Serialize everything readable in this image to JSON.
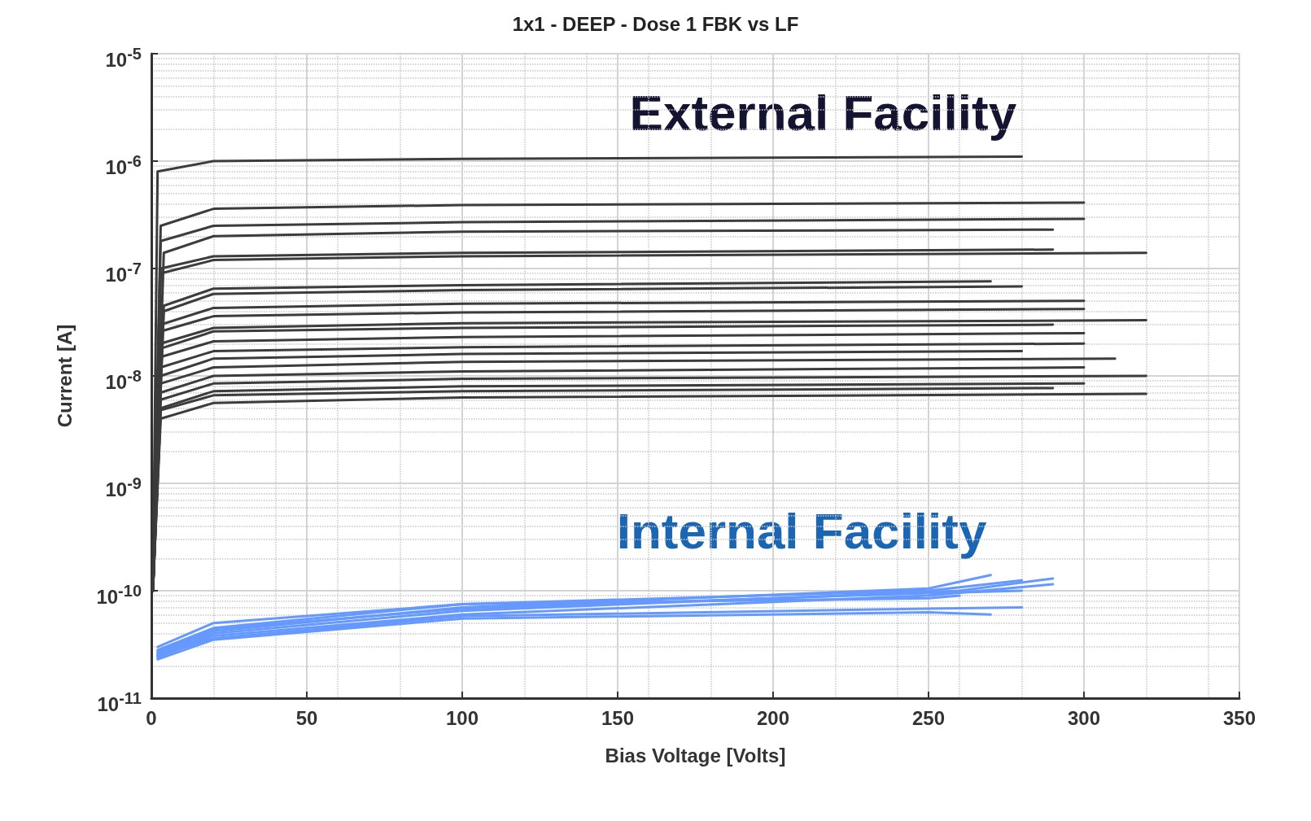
{
  "chart_data": {
    "type": "line",
    "title": "1x1 - DEEP - Dose 1 FBK vs LF",
    "xlabel": "Bias Voltage [Volts]",
    "ylabel": "Current [A]",
    "log": "y",
    "grid": true,
    "marker": "none",
    "xlim": [
      0,
      350
    ],
    "xticks": [
      0,
      50,
      100,
      150,
      200,
      250,
      300,
      350
    ],
    "ylim": [
      1e-11,
      1e-05
    ],
    "yticks": [
      {
        "value": 1e-11,
        "label": "10$^{-11}$"
      },
      {
        "value": 1e-10,
        "label": "10$^{-10}$"
      },
      {
        "value": 1e-09,
        "label": "10$^{-9}$"
      },
      {
        "value": 1e-08,
        "label": "10$^{-8}$"
      },
      {
        "value": 1e-07,
        "label": "10$^{-7}$"
      },
      {
        "value": 1e-06,
        "label": "10$^{-6}$"
      },
      {
        "value": 1e-05,
        "label": "10$^{-5}$"
      }
    ],
    "annotations": [
      "External Facility",
      "Internal Facility"
    ],
    "series": [
      {
        "color": "#3c3c3c",
        "x": [
          0.5,
          2,
          20,
          100,
          280
        ],
        "values": [
          1e-10,
          8e-07,
          1e-06,
          1.05e-06,
          1.1e-06
        ]
      },
      {
        "color": "#3c3c3c",
        "x": [
          0.5,
          3,
          20,
          100,
          300
        ],
        "values": [
          1e-10,
          2.5e-07,
          3.6e-07,
          3.9e-07,
          4.1e-07
        ]
      },
      {
        "color": "#3c3c3c",
        "x": [
          0.5,
          3,
          20,
          100,
          300
        ],
        "values": [
          1e-10,
          1.8e-07,
          2.5e-07,
          2.7e-07,
          2.9e-07
        ]
      },
      {
        "color": "#3c3c3c",
        "x": [
          0.5,
          4,
          20,
          100,
          290
        ],
        "values": [
          1e-10,
          1.4e-07,
          2e-07,
          2.2e-07,
          2.3e-07
        ]
      },
      {
        "color": "#3c3c3c",
        "x": [
          0.5,
          3,
          20,
          100,
          290
        ],
        "values": [
          1e-10,
          1e-07,
          1.3e-07,
          1.4e-07,
          1.5e-07
        ]
      },
      {
        "color": "#3c3c3c",
        "x": [
          0.5,
          3,
          20,
          100,
          320
        ],
        "values": [
          1e-10,
          9e-08,
          1.2e-07,
          1.3e-07,
          1.4e-07
        ]
      },
      {
        "color": "#3c3c3c",
        "x": [
          0.5,
          4,
          20,
          100,
          270
        ],
        "values": [
          1e-10,
          4.5e-08,
          6.5e-08,
          7e-08,
          7.6e-08
        ]
      },
      {
        "color": "#3c3c3c",
        "x": [
          0.5,
          4,
          20,
          100,
          280
        ],
        "values": [
          1e-10,
          4e-08,
          5.8e-08,
          6.3e-08,
          6.8e-08
        ]
      },
      {
        "color": "#3c3c3c",
        "x": [
          0.5,
          3,
          20,
          100,
          300
        ],
        "values": [
          1e-10,
          3e-08,
          4.3e-08,
          4.7e-08,
          5e-08
        ]
      },
      {
        "color": "#3c3c3c",
        "x": [
          0.5,
          3,
          20,
          100,
          300
        ],
        "values": [
          1e-10,
          2.6e-08,
          3.6e-08,
          3.9e-08,
          4.2e-08
        ]
      },
      {
        "color": "#3c3c3c",
        "x": [
          0.5,
          3,
          20,
          100,
          320
        ],
        "values": [
          1e-10,
          2e-08,
          2.8e-08,
          3.1e-08,
          3.3e-08
        ]
      },
      {
        "color": "#3c3c3c",
        "x": [
          0.5,
          3,
          20,
          100,
          290
        ],
        "values": [
          1e-10,
          1.8e-08,
          2.6e-08,
          2.8e-08,
          3e-08
        ]
      },
      {
        "color": "#3c3c3c",
        "x": [
          0.5,
          3,
          20,
          100,
          300
        ],
        "values": [
          1e-10,
          1.5e-08,
          2.1e-08,
          2.3e-08,
          2.5e-08
        ]
      },
      {
        "color": "#3c3c3c",
        "x": [
          0.5,
          3,
          20,
          100,
          300
        ],
        "values": [
          1e-10,
          1.2e-08,
          1.7e-08,
          1.85e-08,
          2e-08
        ]
      },
      {
        "color": "#3c3c3c",
        "x": [
          0.5,
          3,
          20,
          100,
          280
        ],
        "values": [
          1e-10,
          1e-08,
          1.45e-08,
          1.6e-08,
          1.7e-08
        ]
      },
      {
        "color": "#3c3c3c",
        "x": [
          0.5,
          3,
          20,
          100,
          310
        ],
        "values": [
          1e-10,
          8.5e-09,
          1.2e-08,
          1.35e-08,
          1.45e-08
        ]
      },
      {
        "color": "#3c3c3c",
        "x": [
          0.5,
          3,
          20,
          100,
          300
        ],
        "values": [
          1e-10,
          7e-09,
          1e-08,
          1.1e-08,
          1.2e-08
        ]
      },
      {
        "color": "#3c3c3c",
        "x": [
          0.5,
          3,
          20,
          100,
          320
        ],
        "values": [
          1e-10,
          6e-09,
          8.5e-09,
          9.4e-09,
          1e-08
        ]
      },
      {
        "color": "#3c3c3c",
        "x": [
          0.5,
          3,
          20,
          100,
          290
        ],
        "values": [
          1e-10,
          4.8e-09,
          6.6e-09,
          7.2e-09,
          7.7e-09
        ]
      },
      {
        "color": "#3c3c3c",
        "x": [
          0.5,
          3,
          20,
          100,
          300
        ],
        "values": [
          1e-10,
          5e-09,
          7.2e-09,
          8e-09,
          8.5e-09
        ]
      },
      {
        "color": "#3c3c3c",
        "x": [
          0.5,
          3,
          20,
          100,
          320
        ],
        "values": [
          1e-10,
          4e-09,
          5.6e-09,
          6.3e-09,
          6.8e-09
        ]
      },
      {
        "color": "#6699ff",
        "x": [
          2,
          20,
          100,
          250,
          270
        ],
        "values": [
          2.6e-11,
          4.2e-11,
          7e-11,
          1.05e-10,
          1.4e-10
        ]
      },
      {
        "color": "#6699ff",
        "x": [
          2,
          20,
          100,
          250,
          280
        ],
        "values": [
          2.8e-11,
          4.5e-11,
          7.5e-11,
          1e-10,
          1.25e-10
        ]
      },
      {
        "color": "#6699ff",
        "x": [
          2,
          20,
          100,
          260,
          290
        ],
        "values": [
          2.5e-11,
          4e-11,
          6.5e-11,
          1e-10,
          1.3e-10
        ]
      },
      {
        "color": "#6699ff",
        "x": [
          2,
          20,
          100,
          250,
          290
        ],
        "values": [
          2.4e-11,
          3.8e-11,
          6e-11,
          9e-11,
          1.15e-10
        ]
      },
      {
        "color": "#6699ff",
        "x": [
          2,
          20,
          100,
          250,
          270
        ],
        "values": [
          2.3e-11,
          3.5e-11,
          5.5e-11,
          6.3e-11,
          6e-11
        ]
      },
      {
        "color": "#6699ff",
        "x": [
          2,
          20,
          100,
          250,
          280
        ],
        "values": [
          2.5e-11,
          3.6e-11,
          5.8e-11,
          6.8e-11,
          7e-11
        ]
      },
      {
        "color": "#6699ff",
        "x": [
          2,
          20,
          100,
          250,
          260
        ],
        "values": [
          3e-11,
          5e-11,
          7.5e-11,
          8.5e-11,
          9e-11
        ]
      },
      {
        "color": "#6699ff",
        "x": [
          2,
          20,
          100,
          250,
          280
        ],
        "values": [
          2.7e-11,
          4.4e-11,
          6.8e-11,
          9.5e-11,
          1e-10
        ]
      }
    ]
  }
}
